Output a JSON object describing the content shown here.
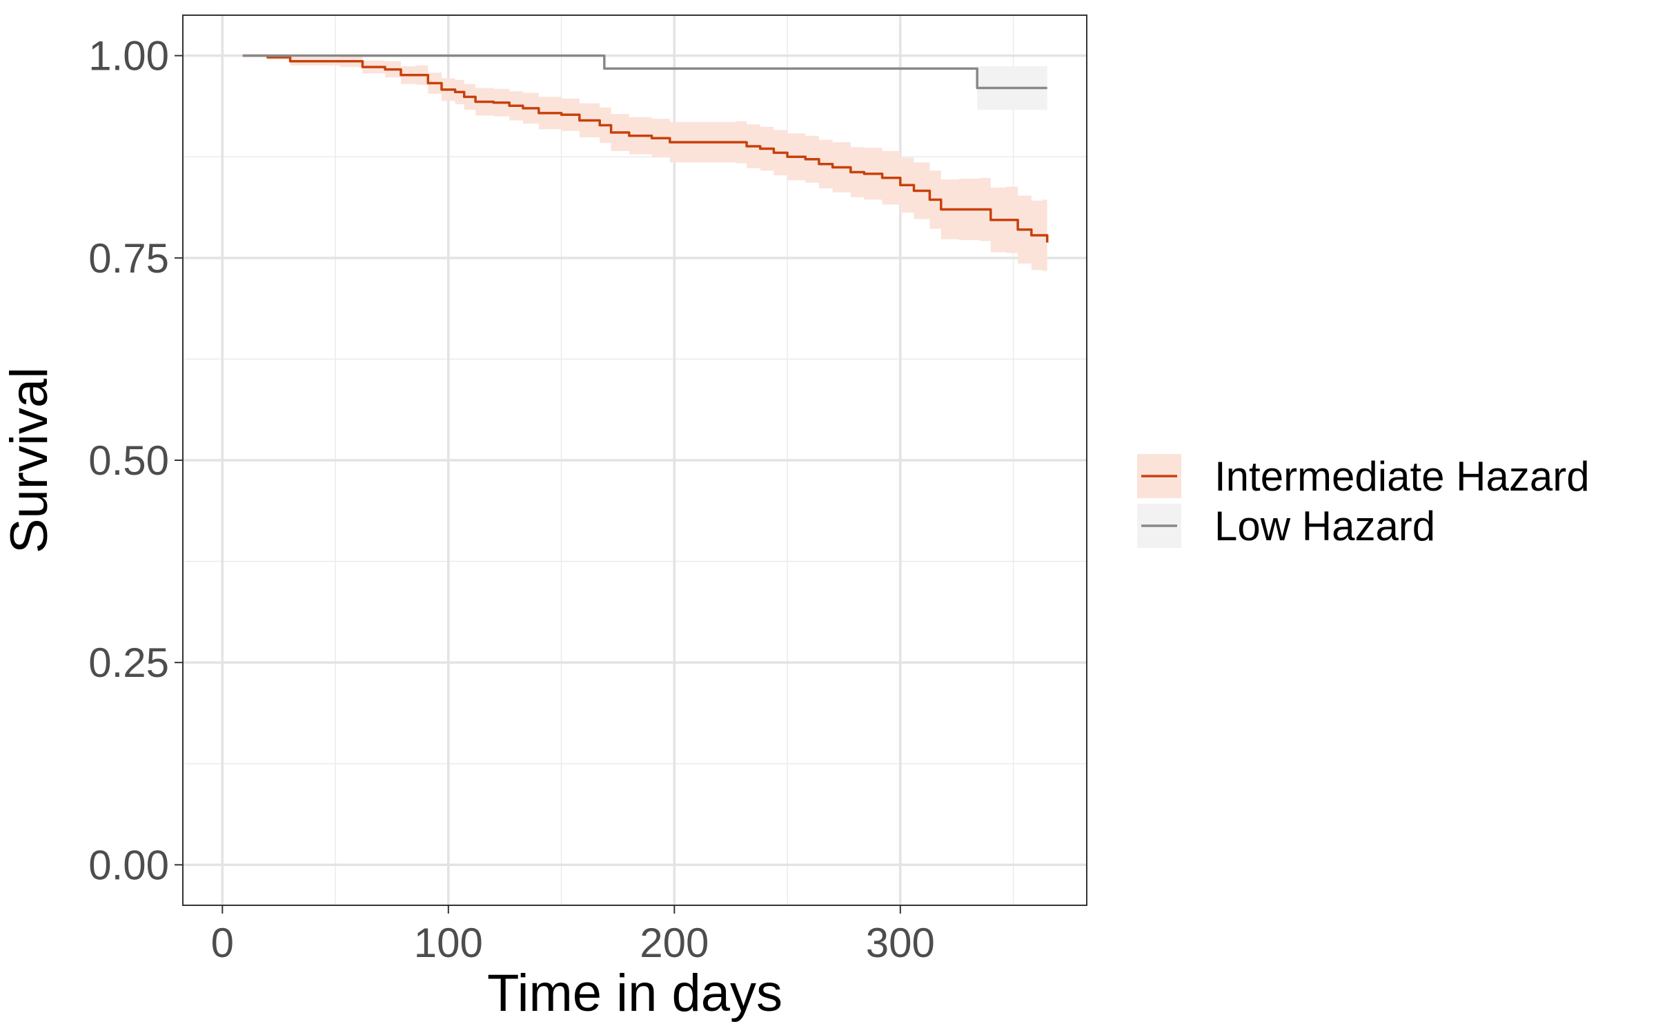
{
  "chart_data": {
    "type": "line",
    "xlabel": "Time in days",
    "ylabel": "Survival",
    "xlim": [
      -17.5,
      382.5
    ],
    "ylim": [
      -0.05,
      1.05
    ],
    "x_ticks": [
      0,
      100,
      200,
      300
    ],
    "x_tick_labels": [
      "0",
      "100",
      "200",
      "300"
    ],
    "y_ticks": [
      0,
      0.25,
      0.5,
      0.75,
      1.0
    ],
    "y_tick_labels": [
      "0.00",
      "0.25",
      "0.50",
      "0.75",
      "1.00"
    ],
    "x_minor": [
      50,
      150,
      250,
      350
    ],
    "y_minor": [
      0.125,
      0.375,
      0.625,
      0.875
    ],
    "grid": true,
    "legend_position": "right",
    "series": [
      {
        "name": "Intermediate Hazard",
        "color": "#c8400b",
        "band_color": "#fbe3da",
        "points": [
          [
            9,
            1.0
          ],
          [
            20,
            0.998
          ],
          [
            30,
            0.993
          ],
          [
            52,
            0.993
          ],
          [
            62,
            0.986
          ],
          [
            72,
            0.983
          ],
          [
            79,
            0.976
          ],
          [
            86,
            0.976
          ],
          [
            91,
            0.966
          ],
          [
            97,
            0.958
          ],
          [
            103,
            0.955
          ],
          [
            107,
            0.949
          ],
          [
            112,
            0.943
          ],
          [
            120,
            0.942
          ],
          [
            127,
            0.938
          ],
          [
            133,
            0.935
          ],
          [
            140,
            0.929
          ],
          [
            150,
            0.927
          ],
          [
            158,
            0.92
          ],
          [
            167,
            0.914
          ],
          [
            172,
            0.905
          ],
          [
            180,
            0.901
          ],
          [
            190,
            0.898
          ],
          [
            198,
            0.893
          ],
          [
            210,
            0.893
          ],
          [
            227,
            0.893
          ],
          [
            232,
            0.888
          ],
          [
            238,
            0.885
          ],
          [
            244,
            0.88
          ],
          [
            250,
            0.875
          ],
          [
            258,
            0.872
          ],
          [
            264,
            0.866
          ],
          [
            270,
            0.862
          ],
          [
            278,
            0.856
          ],
          [
            284,
            0.854
          ],
          [
            292,
            0.849
          ],
          [
            300,
            0.84
          ],
          [
            306,
            0.833
          ],
          [
            313,
            0.822
          ],
          [
            318,
            0.81
          ],
          [
            326,
            0.81
          ],
          [
            335,
            0.81
          ],
          [
            340,
            0.797
          ],
          [
            347,
            0.797
          ],
          [
            352,
            0.785
          ],
          [
            358,
            0.778
          ],
          [
            363,
            0.778
          ],
          [
            365,
            0.769
          ]
        ],
        "lower": [
          [
            9,
            1.0
          ],
          [
            20,
            0.995
          ],
          [
            30,
            0.988
          ],
          [
            52,
            0.986
          ],
          [
            62,
            0.978
          ],
          [
            72,
            0.973
          ],
          [
            79,
            0.965
          ],
          [
            86,
            0.964
          ],
          [
            91,
            0.953
          ],
          [
            97,
            0.944
          ],
          [
            103,
            0.94
          ],
          [
            107,
            0.933
          ],
          [
            112,
            0.926
          ],
          [
            120,
            0.925
          ],
          [
            127,
            0.92
          ],
          [
            133,
            0.916
          ],
          [
            140,
            0.909
          ],
          [
            150,
            0.907
          ],
          [
            158,
            0.899
          ],
          [
            167,
            0.892
          ],
          [
            172,
            0.882
          ],
          [
            180,
            0.878
          ],
          [
            190,
            0.874
          ],
          [
            198,
            0.868
          ],
          [
            210,
            0.868
          ],
          [
            227,
            0.867
          ],
          [
            232,
            0.861
          ],
          [
            238,
            0.858
          ],
          [
            244,
            0.852
          ],
          [
            250,
            0.846
          ],
          [
            258,
            0.843
          ],
          [
            264,
            0.836
          ],
          [
            270,
            0.831
          ],
          [
            278,
            0.825
          ],
          [
            284,
            0.822
          ],
          [
            292,
            0.816
          ],
          [
            300,
            0.806
          ],
          [
            306,
            0.798
          ],
          [
            313,
            0.786
          ],
          [
            318,
            0.773
          ],
          [
            326,
            0.772
          ],
          [
            335,
            0.771
          ],
          [
            340,
            0.757
          ],
          [
            347,
            0.756
          ],
          [
            352,
            0.743
          ],
          [
            358,
            0.735
          ],
          [
            363,
            0.734
          ],
          [
            365,
            0.724
          ]
        ],
        "upper": [
          [
            9,
            1.0
          ],
          [
            20,
            1.0
          ],
          [
            30,
            0.998
          ],
          [
            52,
            0.999
          ],
          [
            62,
            0.994
          ],
          [
            72,
            0.993
          ],
          [
            79,
            0.987
          ],
          [
            86,
            0.988
          ],
          [
            91,
            0.979
          ],
          [
            97,
            0.972
          ],
          [
            103,
            0.97
          ],
          [
            107,
            0.965
          ],
          [
            112,
            0.96
          ],
          [
            120,
            0.959
          ],
          [
            127,
            0.956
          ],
          [
            133,
            0.954
          ],
          [
            140,
            0.949
          ],
          [
            150,
            0.947
          ],
          [
            158,
            0.941
          ],
          [
            167,
            0.936
          ],
          [
            172,
            0.928
          ],
          [
            180,
            0.924
          ],
          [
            190,
            0.922
          ],
          [
            198,
            0.918
          ],
          [
            210,
            0.918
          ],
          [
            227,
            0.919
          ],
          [
            232,
            0.915
          ],
          [
            238,
            0.912
          ],
          [
            244,
            0.908
          ],
          [
            250,
            0.904
          ],
          [
            258,
            0.901
          ],
          [
            264,
            0.896
          ],
          [
            270,
            0.893
          ],
          [
            278,
            0.887
          ],
          [
            284,
            0.886
          ],
          [
            292,
            0.882
          ],
          [
            300,
            0.874
          ],
          [
            306,
            0.868
          ],
          [
            313,
            0.858
          ],
          [
            318,
            0.847
          ],
          [
            326,
            0.848
          ],
          [
            335,
            0.849
          ],
          [
            340,
            0.837
          ],
          [
            347,
            0.838
          ],
          [
            352,
            0.827
          ],
          [
            358,
            0.821
          ],
          [
            363,
            0.822
          ],
          [
            365,
            0.814
          ]
        ]
      },
      {
        "name": "Low Hazard",
        "color": "#888888",
        "band_color": "#f2f2f2",
        "points": [
          [
            9,
            1.0
          ],
          [
            133,
            1.0
          ],
          [
            169,
            0.984
          ],
          [
            323,
            0.984
          ],
          [
            334,
            0.96
          ],
          [
            365,
            0.96
          ]
        ],
        "lower": [
          [
            9,
            1.0
          ],
          [
            133,
            1.0
          ],
          [
            169,
            0.984
          ],
          [
            323,
            0.984
          ],
          [
            334,
            0.933
          ],
          [
            365,
            0.933
          ]
        ],
        "upper": [
          [
            9,
            1.0
          ],
          [
            133,
            1.0
          ],
          [
            169,
            0.984
          ],
          [
            323,
            0.984
          ],
          [
            334,
            0.987
          ],
          [
            365,
            0.987
          ]
        ]
      }
    ]
  }
}
